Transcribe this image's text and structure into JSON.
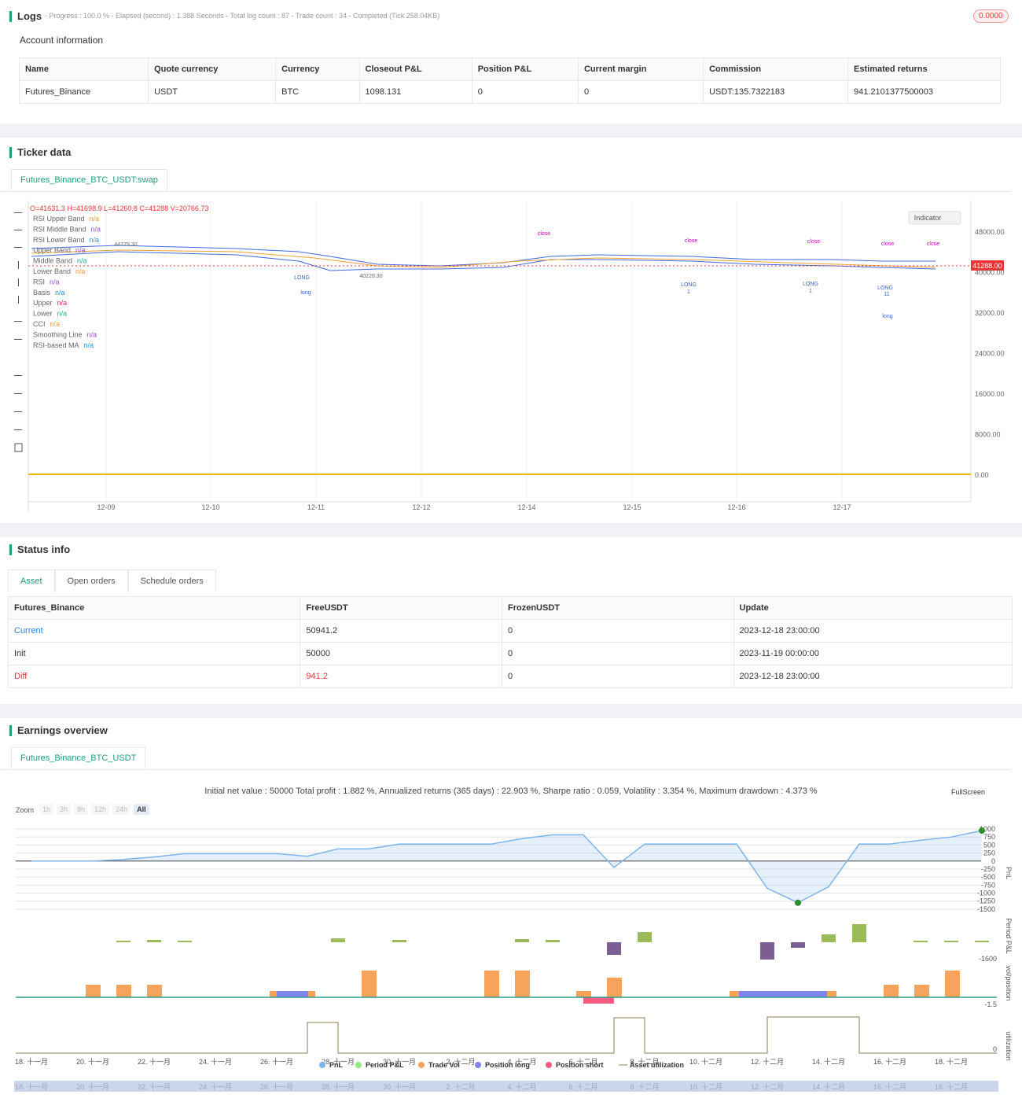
{
  "logs": {
    "title": "Logs",
    "summary": "- Progress : 100.0 % - Elapsed (second) : 1.388  Seconds - Total log count : 87 - Trade count : 34 - Completed (Tick 258.04KB)",
    "badge": "0.0000"
  },
  "account": {
    "title": "Account information",
    "header": [
      "Name",
      "Quote currency",
      "Currency",
      "Closeout P&L",
      "Position P&L",
      "Current margin",
      "Commission",
      "Estimated returns"
    ],
    "rows": [
      [
        "Futures_Binance",
        "USDT",
        "BTC",
        "1098.131",
        "0",
        "0",
        "USDT:135.7322183",
        "941.2101377500003"
      ]
    ]
  },
  "ticker": {
    "title": "Ticker data",
    "tab": "Futures_Binance_BTC_USDT:swap",
    "ohlcv": "O=41631.3 H=41698.9 L=41260.8 C=41288 V=20766.73",
    "indicator": "Indicator",
    "legend": [
      {
        "name": "RSI Upper Band",
        "value": "n/a",
        "color": "#f0a030"
      },
      {
        "name": "RSI Middle Band",
        "value": "n/a",
        "color": "#9c50c8"
      },
      {
        "name": "RSI Lower Band",
        "value": "n/a",
        "color": "#2196f3"
      },
      {
        "name": "Upper Band",
        "value": "n/a",
        "color": "#9c50c8"
      },
      {
        "name": "Middle Band",
        "value": "n/a",
        "color": "#26a69a"
      },
      {
        "name": "Lower Band",
        "value": "n/a",
        "color": "#f0a030"
      },
      {
        "name": "RSI",
        "value": "n/a",
        "color": "#9c50c8"
      },
      {
        "name": "Basis",
        "value": "n/a",
        "color": "#2196f3"
      },
      {
        "name": "Upper",
        "value": "n/a",
        "color": "#e91e63"
      },
      {
        "name": "Lower",
        "value": "n/a",
        "color": "#26a69a"
      },
      {
        "name": "CCI",
        "value": "n/a",
        "color": "#f0a030"
      },
      {
        "name": "Smoothing Line",
        "value": "n/a",
        "color": "#9c50c8"
      },
      {
        "name": "RSI-based MA",
        "value": "n/a",
        "color": "#2196f3"
      }
    ],
    "price_ticks": [
      "48000.00",
      "40000.00",
      "32000.00",
      "24000.00",
      "16000.00",
      "8000.00",
      "0.00"
    ],
    "last_price": "41288.00",
    "dates": [
      "12-09",
      "12-10",
      "12-11",
      "12-12",
      "12-14",
      "12-15",
      "12-16",
      "12-17"
    ],
    "annotations": [
      "close",
      "close",
      "close",
      "close",
      "close",
      "44779.30",
      "40228.30",
      "LONG",
      "long",
      "LONG",
      "1",
      "LONG",
      "1",
      "LONG",
      "11",
      "long"
    ]
  },
  "status": {
    "title": "Status info",
    "tabs": [
      "Asset",
      "Open orders",
      "Schedule orders"
    ],
    "header": [
      "Futures_Binance",
      "FreeUSDT",
      "FrozenUSDT",
      "Update"
    ],
    "rows": [
      [
        "Current",
        "50941.2",
        "0",
        "2023-12-18 23:00:00"
      ],
      [
        "Init",
        "50000",
        "0",
        "2023-11-19 00:00:00"
      ],
      [
        "Diff",
        "941.2",
        "0",
        "2023-12-18 23:00:00"
      ]
    ]
  },
  "earnings": {
    "title": "Earnings overview",
    "tab": "Futures_Binance_BTC_USDT",
    "summary": "Initial net value : 50000 Total profit : 1.882 %, Annualized returns (365 days) : 22.903 %, Sharpe ratio : 0.059, Volatility : 3.354 %, Maximum drawdown : 4.373 %",
    "fullscreen": "FullScreen",
    "zoom": "Zoom",
    "zoom_buttons": [
      "1h",
      "3h",
      "8h",
      "12h",
      "24h",
      "All"
    ],
    "pnl": {
      "name": "PnL",
      "color": "#7cb5ec",
      "ylim": [
        -1600,
        1000
      ],
      "yticks": [
        1000,
        750,
        500,
        250,
        0,
        -250,
        -500,
        -750,
        -1000,
        -1250,
        -1500
      ],
      "values": [
        0,
        0,
        0,
        50,
        130,
        230,
        230,
        230,
        230,
        150,
        380,
        380,
        530,
        530,
        530,
        530,
        700,
        820,
        820,
        -200,
        530,
        530,
        530,
        530,
        -850,
        -1300,
        -800,
        530,
        530,
        650,
        750,
        950
      ]
    },
    "axis_titles": [
      "PnL",
      "Period P&L",
      "vol/position",
      "utilization"
    ],
    "period_tick": "-1600",
    "vol_tick": "-1.5",
    "util_tick": "0",
    "x_labels": [
      "18. 十一月",
      "20. 十一月",
      "22. 十一月",
      "24. 十一月",
      "26. 十一月",
      "28. 十一月",
      "30. 十一月",
      "2. 十二月",
      "4. 十二月",
      "6. 十二月",
      "8. 十二月",
      "10. 十二月",
      "12. 十二月",
      "14. 十二月",
      "16. 十二月",
      "18. 十二月"
    ],
    "legend": [
      {
        "name": "PnL",
        "color": "#7cb5ec"
      },
      {
        "name": "Period P&L",
        "color": "#90ed7d"
      },
      {
        "name": "Trade Vol",
        "color": "#f7a35c"
      },
      {
        "name": "Position long",
        "color": "#8085e9"
      },
      {
        "name": "Position short",
        "color": "#f15c80"
      },
      {
        "name": "Asset utilization",
        "color": "#8d7e4f"
      }
    ]
  }
}
